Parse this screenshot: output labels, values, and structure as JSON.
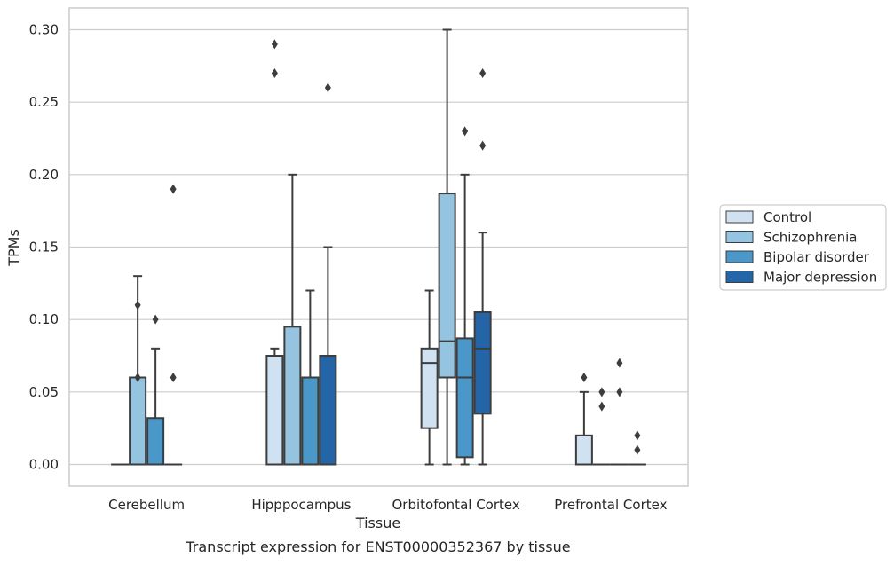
{
  "chart_data": {
    "type": "box",
    "title": "",
    "caption": "Transcript expression for ENST00000352367 by tissue",
    "xlabel": "Tissue",
    "ylabel": "TPMs",
    "ylim": [
      -0.015,
      0.315
    ],
    "yticks": [
      "0.00",
      "0.05",
      "0.10",
      "0.15",
      "0.20",
      "0.25",
      "0.30"
    ],
    "grid": true,
    "legend_position": "right",
    "categories": [
      "Cerebellum",
      "Hipppocampus",
      "Orbitofontal Cortex",
      "Prefrontal Cortex"
    ],
    "series": [
      {
        "name": "Control",
        "color": "#d0e1f2",
        "boxes": [
          {
            "whislo": 0,
            "q1": 0,
            "med": 0,
            "q3": 0,
            "whishi": 0,
            "fliers": []
          },
          {
            "whislo": 0,
            "q1": 0,
            "med": 0,
            "q3": 0.075,
            "whishi": 0.08,
            "fliers": [
              0.27,
              0.29
            ]
          },
          {
            "whislo": 0,
            "q1": 0.025,
            "med": 0.07,
            "q3": 0.08,
            "whishi": 0.12,
            "fliers": []
          },
          {
            "whislo": 0,
            "q1": 0,
            "med": 0,
            "q3": 0.02,
            "whishi": 0.05,
            "fliers": [
              0.06
            ]
          }
        ]
      },
      {
        "name": "Schizophrenia",
        "color": "#94c4df",
        "boxes": [
          {
            "whislo": 0,
            "q1": 0,
            "med": 0,
            "q3": 0.06,
            "whishi": 0.13,
            "fliers": [
              0.06,
              0.11
            ]
          },
          {
            "whislo": 0,
            "q1": 0,
            "med": 0,
            "q3": 0.095,
            "whishi": 0.2,
            "fliers": []
          },
          {
            "whislo": 0,
            "q1": 0.06,
            "med": 0.085,
            "q3": 0.187,
            "whishi": 0.3,
            "fliers": []
          },
          {
            "whislo": 0,
            "q1": 0,
            "med": 0,
            "q3": 0,
            "whishi": 0,
            "fliers": [
              0.04,
              0.05
            ]
          }
        ]
      },
      {
        "name": "Bipolar disorder",
        "color": "#4a98c9",
        "boxes": [
          {
            "whislo": 0,
            "q1": 0,
            "med": 0,
            "q3": 0.032,
            "whishi": 0.08,
            "fliers": [
              0.1
            ]
          },
          {
            "whislo": 0,
            "q1": 0,
            "med": 0,
            "q3": 0.06,
            "whishi": 0.12,
            "fliers": []
          },
          {
            "whislo": 0,
            "q1": 0.005,
            "med": 0.06,
            "q3": 0.087,
            "whishi": 0.2,
            "fliers": [
              0.23
            ]
          },
          {
            "whislo": 0,
            "q1": 0,
            "med": 0,
            "q3": 0,
            "whishi": 0,
            "fliers": [
              0.05,
              0.07
            ]
          }
        ]
      },
      {
        "name": "Major depression",
        "color": "#2465a8",
        "boxes": [
          {
            "whislo": 0,
            "q1": 0,
            "med": 0,
            "q3": 0,
            "whishi": 0,
            "fliers": [
              0.06,
              0.19
            ]
          },
          {
            "whislo": 0,
            "q1": 0,
            "med": 0,
            "q3": 0.075,
            "whishi": 0.15,
            "fliers": [
              0.26
            ]
          },
          {
            "whislo": 0,
            "q1": 0.035,
            "med": 0.08,
            "q3": 0.105,
            "whishi": 0.16,
            "fliers": [
              0.22,
              0.27
            ]
          },
          {
            "whislo": 0,
            "q1": 0,
            "med": 0,
            "q3": 0,
            "whishi": 0,
            "fliers": [
              0.01,
              0.02
            ]
          }
        ]
      }
    ]
  }
}
